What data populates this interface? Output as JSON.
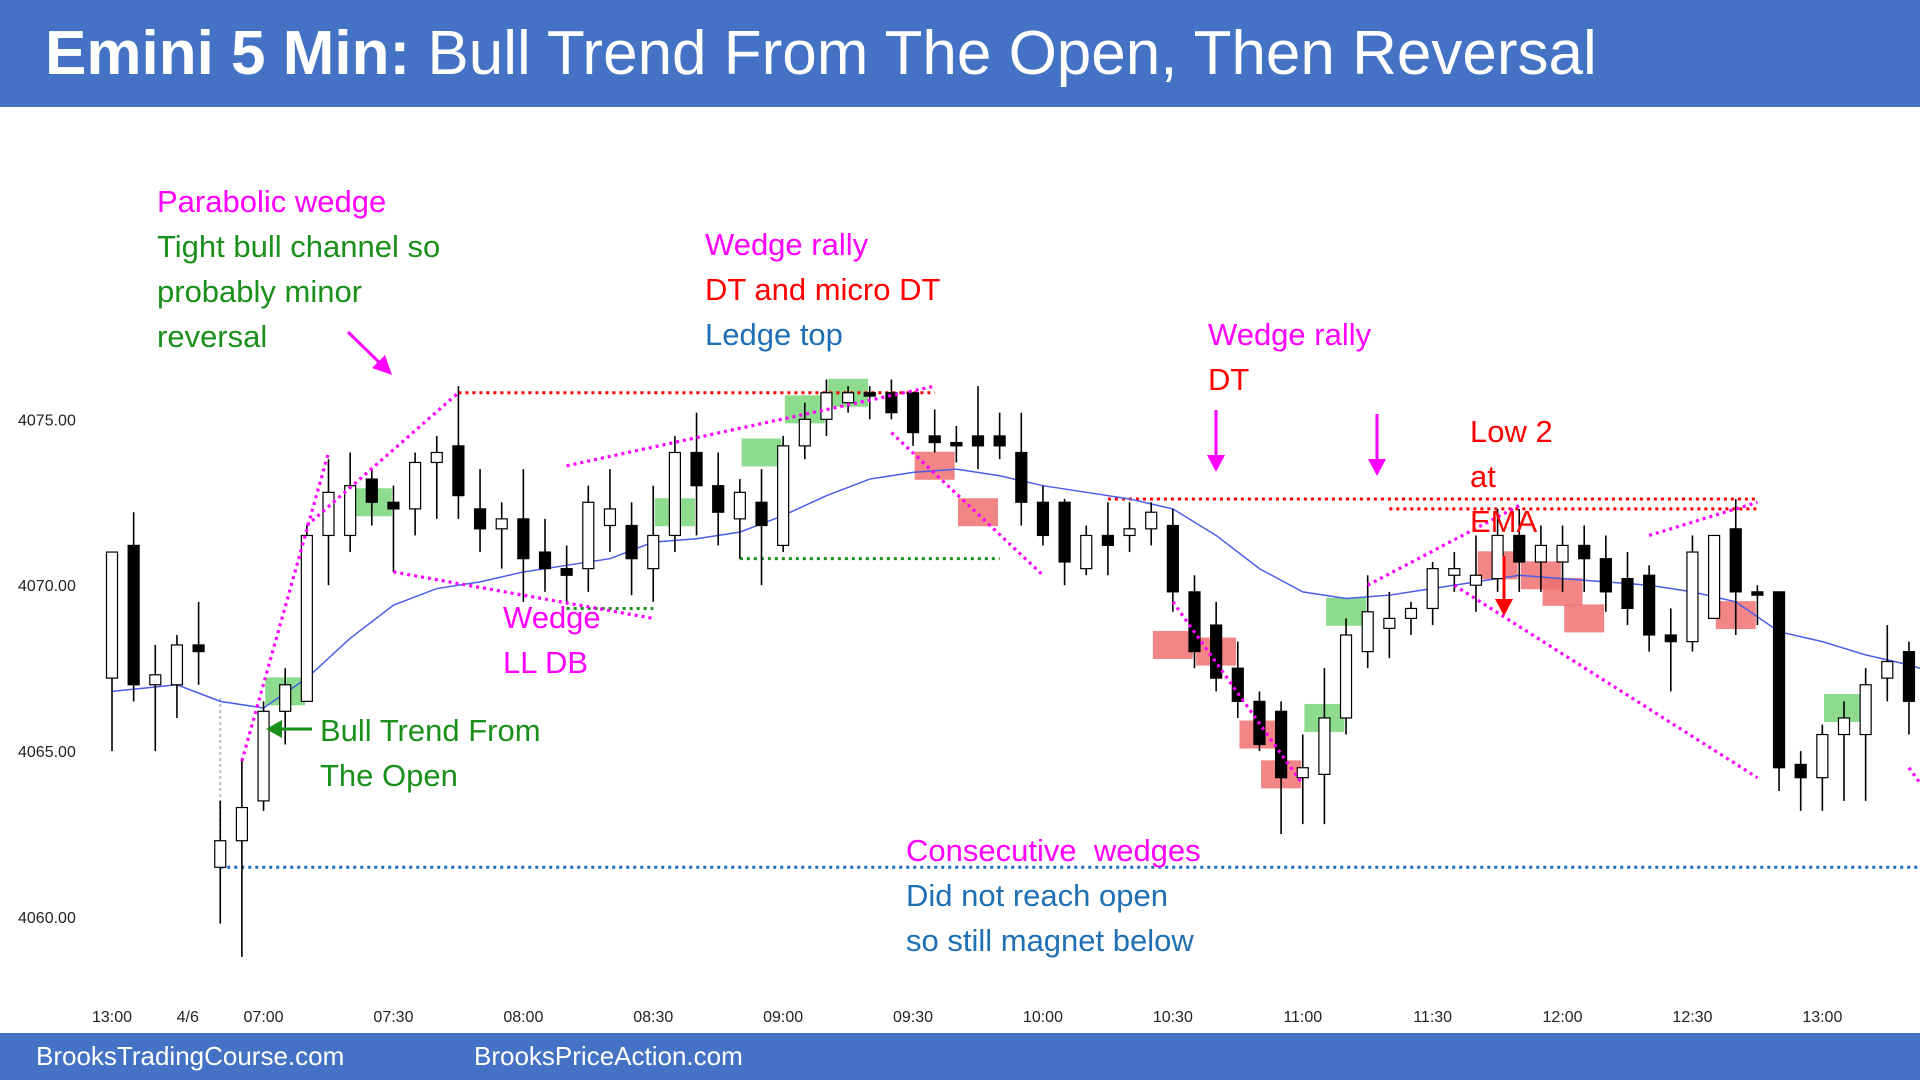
{
  "title": {
    "bold": "Emini 5 Min:",
    "rest": "Bull Trend From The Open, Then Reversal"
  },
  "footer": {
    "left": "BrooksTradingCourse.com",
    "right": "BrooksPriceAction.com"
  },
  "colors": {
    "header": "#4472c4",
    "bull_bar": "#ffffff",
    "bear_bar": "#000000",
    "ema": "#4a5ee8",
    "magenta": "#ff00ff",
    "red": "#ff0000",
    "green": "#1a8f1a",
    "blue": "#1f6fb4",
    "buy_box": "#79d679",
    "sell_box": "#f07070"
  },
  "chart_data": {
    "type": "candlestick",
    "title": "",
    "xlabel": "",
    "ylabel": "",
    "ylim": [
      4057.5,
      4079.5
    ],
    "y_ticks": [
      "4060.00",
      "4065.00",
      "4070.00",
      "4075.00"
    ],
    "y_tick_values": [
      4060,
      4065,
      4070,
      4075
    ],
    "x_ticks": [
      "13:00",
      "4/6",
      "07:00",
      "07:30",
      "08:00",
      "08:30",
      "09:00",
      "09:30",
      "10:00",
      "10:30",
      "11:00",
      "11:30",
      "12:00",
      "12:30",
      "13:00"
    ],
    "x_tick_bars": [
      0,
      3.5,
      7,
      13,
      19,
      25,
      31,
      37,
      43,
      49,
      55,
      61,
      67,
      73,
      79
    ],
    "bars": [
      {
        "o": 4067.2,
        "h": 4071.0,
        "l": 4065.0,
        "c": 4071.0
      },
      {
        "o": 4071.2,
        "h": 4072.2,
        "l": 4066.5,
        "c": 4067.0
      },
      {
        "o": 4067.0,
        "h": 4068.2,
        "l": 4065.0,
        "c": 4067.3
      },
      {
        "o": 4067.0,
        "h": 4068.5,
        "l": 4066.0,
        "c": 4068.2
      },
      {
        "o": 4068.2,
        "h": 4069.5,
        "l": 4067.0,
        "c": 4068.0
      },
      {
        "o": 4061.5,
        "h": 4063.5,
        "l": 4059.8,
        "c": 4062.3
      },
      {
        "o": 4062.3,
        "h": 4064.8,
        "l": 4058.8,
        "c": 4063.3
      },
      {
        "o": 4063.5,
        "h": 4066.5,
        "l": 4063.2,
        "c": 4066.2
      },
      {
        "o": 4066.2,
        "h": 4067.5,
        "l": 4065.2,
        "c": 4067.0
      },
      {
        "o": 4066.5,
        "h": 4071.8,
        "l": 4066.5,
        "c": 4071.5
      },
      {
        "o": 4071.5,
        "h": 4073.8,
        "l": 4070.0,
        "c": 4072.8
      },
      {
        "o": 4071.5,
        "h": 4074.0,
        "l": 4071.0,
        "c": 4073.0
      },
      {
        "o": 4073.2,
        "h": 4073.5,
        "l": 4071.8,
        "c": 4072.5
      },
      {
        "o": 4072.5,
        "h": 4073.0,
        "l": 4070.4,
        "c": 4072.3
      },
      {
        "o": 4072.3,
        "h": 4074.0,
        "l": 4071.5,
        "c": 4073.7
      },
      {
        "o": 4073.7,
        "h": 4074.5,
        "l": 4072.0,
        "c": 4074.0
      },
      {
        "o": 4074.2,
        "h": 4076.0,
        "l": 4072.0,
        "c": 4072.7
      },
      {
        "o": 4072.3,
        "h": 4073.5,
        "l": 4071.0,
        "c": 4071.7
      },
      {
        "o": 4071.7,
        "h": 4072.5,
        "l": 4070.5,
        "c": 4072.0
      },
      {
        "o": 4072.0,
        "h": 4073.5,
        "l": 4069.5,
        "c": 4070.8
      },
      {
        "o": 4071.0,
        "h": 4072.0,
        "l": 4069.8,
        "c": 4070.5
      },
      {
        "o": 4070.5,
        "h": 4071.2,
        "l": 4069.5,
        "c": 4070.3
      },
      {
        "o": 4070.5,
        "h": 4073.0,
        "l": 4069.8,
        "c": 4072.5
      },
      {
        "o": 4071.8,
        "h": 4073.5,
        "l": 4071.0,
        "c": 4072.3
      },
      {
        "o": 4071.8,
        "h": 4072.5,
        "l": 4069.7,
        "c": 4070.8
      },
      {
        "o": 4070.5,
        "h": 4073.0,
        "l": 4069.5,
        "c": 4071.5
      },
      {
        "o": 4071.5,
        "h": 4074.5,
        "l": 4071.0,
        "c": 4074.0
      },
      {
        "o": 4074.0,
        "h": 4075.2,
        "l": 4071.5,
        "c": 4073.0
      },
      {
        "o": 4073.0,
        "h": 4074.0,
        "l": 4071.2,
        "c": 4072.2
      },
      {
        "o": 4072.0,
        "h": 4073.2,
        "l": 4070.8,
        "c": 4072.8
      },
      {
        "o": 4072.5,
        "h": 4073.5,
        "l": 4070.0,
        "c": 4071.8
      },
      {
        "o": 4071.2,
        "h": 4074.5,
        "l": 4071.0,
        "c": 4074.2
      },
      {
        "o": 4074.2,
        "h": 4075.5,
        "l": 4073.8,
        "c": 4075.0
      },
      {
        "o": 4075.0,
        "h": 4076.2,
        "l": 4074.5,
        "c": 4075.8
      },
      {
        "o": 4075.5,
        "h": 4076.0,
        "l": 4075.2,
        "c": 4075.8
      },
      {
        "o": 4075.8,
        "h": 4076.0,
        "l": 4075.0,
        "c": 4075.7
      },
      {
        "o": 4075.8,
        "h": 4076.2,
        "l": 4075.0,
        "c": 4075.2
      },
      {
        "o": 4075.8,
        "h": 4075.8,
        "l": 4074.2,
        "c": 4074.6
      },
      {
        "o": 4074.5,
        "h": 4075.3,
        "l": 4074.0,
        "c": 4074.3
      },
      {
        "o": 4074.3,
        "h": 4074.8,
        "l": 4073.7,
        "c": 4074.2
      },
      {
        "o": 4074.5,
        "h": 4076.0,
        "l": 4073.5,
        "c": 4074.2
      },
      {
        "o": 4074.5,
        "h": 4075.2,
        "l": 4073.8,
        "c": 4074.2
      },
      {
        "o": 4074.0,
        "h": 4075.2,
        "l": 4071.8,
        "c": 4072.5
      },
      {
        "o": 4072.5,
        "h": 4073.0,
        "l": 4071.2,
        "c": 4071.5
      },
      {
        "o": 4072.5,
        "h": 4072.6,
        "l": 4070.0,
        "c": 4070.7
      },
      {
        "o": 4070.5,
        "h": 4071.8,
        "l": 4070.3,
        "c": 4071.5
      },
      {
        "o": 4071.5,
        "h": 4072.5,
        "l": 4070.3,
        "c": 4071.2
      },
      {
        "o": 4071.5,
        "h": 4072.5,
        "l": 4071.0,
        "c": 4071.7
      },
      {
        "o": 4071.7,
        "h": 4072.5,
        "l": 4071.2,
        "c": 4072.2
      },
      {
        "o": 4071.8,
        "h": 4072.3,
        "l": 4069.2,
        "c": 4069.8
      },
      {
        "o": 4069.8,
        "h": 4070.3,
        "l": 4067.5,
        "c": 4068.0
      },
      {
        "o": 4068.8,
        "h": 4069.5,
        "l": 4066.8,
        "c": 4067.2
      },
      {
        "o": 4067.5,
        "h": 4068.3,
        "l": 4066.0,
        "c": 4066.5
      },
      {
        "o": 4066.5,
        "h": 4066.8,
        "l": 4065.0,
        "c": 4065.2
      },
      {
        "o": 4066.2,
        "h": 4066.5,
        "l": 4062.5,
        "c": 4064.2
      },
      {
        "o": 4064.2,
        "h": 4065.5,
        "l": 4062.8,
        "c": 4064.5
      },
      {
        "o": 4064.3,
        "h": 4067.5,
        "l": 4062.8,
        "c": 4066.0
      },
      {
        "o": 4066.0,
        "h": 4069.0,
        "l": 4065.5,
        "c": 4068.5
      },
      {
        "o": 4068.0,
        "h": 4070.3,
        "l": 4067.5,
        "c": 4069.2
      },
      {
        "o": 4068.7,
        "h": 4069.8,
        "l": 4067.8,
        "c": 4069.0
      },
      {
        "o": 4069.0,
        "h": 4069.5,
        "l": 4068.5,
        "c": 4069.3
      },
      {
        "o": 4069.3,
        "h": 4070.7,
        "l": 4068.8,
        "c": 4070.5
      },
      {
        "o": 4070.3,
        "h": 4071.0,
        "l": 4069.8,
        "c": 4070.5
      },
      {
        "o": 4070.0,
        "h": 4071.5,
        "l": 4069.2,
        "c": 4070.3
      },
      {
        "o": 4070.2,
        "h": 4072.3,
        "l": 4069.8,
        "c": 4071.5
      },
      {
        "o": 4071.5,
        "h": 4072.3,
        "l": 4069.8,
        "c": 4070.7
      },
      {
        "o": 4070.7,
        "h": 4071.8,
        "l": 4069.8,
        "c": 4071.2
      },
      {
        "o": 4070.7,
        "h": 4071.8,
        "l": 4069.8,
        "c": 4071.2
      },
      {
        "o": 4071.2,
        "h": 4071.8,
        "l": 4069.8,
        "c": 4070.8
      },
      {
        "o": 4070.8,
        "h": 4071.5,
        "l": 4069.2,
        "c": 4069.8
      },
      {
        "o": 4070.2,
        "h": 4071.0,
        "l": 4068.8,
        "c": 4069.3
      },
      {
        "o": 4070.3,
        "h": 4070.6,
        "l": 4068.0,
        "c": 4068.5
      },
      {
        "o": 4068.5,
        "h": 4069.3,
        "l": 4066.8,
        "c": 4068.3
      },
      {
        "o": 4068.3,
        "h": 4071.5,
        "l": 4068.0,
        "c": 4071.0
      },
      {
        "o": 4069.0,
        "h": 4071.5,
        "l": 4069.0,
        "c": 4071.5
      },
      {
        "o": 4071.7,
        "h": 4072.6,
        "l": 4068.5,
        "c": 4069.8
      },
      {
        "o": 4069.8,
        "h": 4070.0,
        "l": 4068.8,
        "c": 4069.7
      },
      {
        "o": 4069.8,
        "h": 4069.8,
        "l": 4063.8,
        "c": 4064.5
      },
      {
        "o": 4064.6,
        "h": 4065.0,
        "l": 4063.2,
        "c": 4064.2
      },
      {
        "o": 4064.2,
        "h": 4065.8,
        "l": 4063.2,
        "c": 4065.5
      },
      {
        "o": 4065.5,
        "h": 4066.5,
        "l": 4063.5,
        "c": 4066.0
      },
      {
        "o": 4065.5,
        "h": 4067.5,
        "l": 4063.5,
        "c": 4067.0
      },
      {
        "o": 4067.2,
        "h": 4068.8,
        "l": 4066.5,
        "c": 4067.7
      },
      {
        "o": 4068.0,
        "h": 4068.3,
        "l": 4065.5,
        "c": 4066.5
      },
      {
        "o": 4066.5,
        "h": 4066.5,
        "l": 4064.0,
        "c": 4064.2
      },
      {
        "o": 4065.2,
        "h": 4065.5,
        "l": 4062.5,
        "c": 4063.3
      },
      {
        "o": 4062.8,
        "h": 4063.2,
        "l": 4061.0,
        "c": 4062.3
      },
      {
        "o": 4062.5,
        "h": 4062.8,
        "l": 4061.5,
        "c": 4062.2
      },
      {
        "o": 4062.5,
        "h": 4062.6,
        "l": 4058.5,
        "c": 4059.0
      },
      {
        "o": 4059.2,
        "h": 4065.5,
        "l": 4058.8,
        "c": 4064.5
      },
      {
        "o": 4064.5,
        "h": 4065.8,
        "l": 4063.3,
        "c": 4064.8
      },
      {
        "o": 4064.8,
        "h": 4065.3,
        "l": 4063.5,
        "c": 4064.6
      },
      {
        "o": 4064.3,
        "h": 4064.8,
        "l": 4063.5,
        "c": 4064.2
      }
    ],
    "ema": [
      [
        0,
        4066.8
      ],
      [
        3,
        4067.0
      ],
      [
        5,
        4066.5
      ],
      [
        7,
        4066.3
      ],
      [
        9,
        4067.2
      ],
      [
        11,
        4068.4
      ],
      [
        13,
        4069.4
      ],
      [
        15,
        4069.9
      ],
      [
        17,
        4070.1
      ],
      [
        19,
        4070.4
      ],
      [
        21,
        4070.6
      ],
      [
        23,
        4070.8
      ],
      [
        25,
        4071.3
      ],
      [
        27,
        4071.4
      ],
      [
        29,
        4071.6
      ],
      [
        31,
        4072.1
      ],
      [
        33,
        4072.7
      ],
      [
        35,
        4073.2
      ],
      [
        37,
        4073.4
      ],
      [
        39,
        4073.5
      ],
      [
        41,
        4073.3
      ],
      [
        43,
        4073.0
      ],
      [
        45,
        4072.8
      ],
      [
        47,
        4072.6
      ],
      [
        49,
        4072.3
      ],
      [
        51,
        4071.5
      ],
      [
        53,
        4070.5
      ],
      [
        55,
        4069.8
      ],
      [
        57,
        4069.6
      ],
      [
        59,
        4069.7
      ],
      [
        61,
        4069.9
      ],
      [
        63,
        4070.1
      ],
      [
        65,
        4070.3
      ],
      [
        67,
        4070.2
      ],
      [
        69,
        4070.1
      ],
      [
        71,
        4070.0
      ],
      [
        73,
        4069.8
      ],
      [
        75,
        4069.5
      ],
      [
        77,
        4068.6
      ],
      [
        79,
        4068.3
      ],
      [
        81,
        4067.9
      ],
      [
        83,
        4067.6
      ],
      [
        85,
        4067.2
      ],
      [
        87,
        4066.5
      ],
      [
        89,
        4065.8
      ],
      [
        91,
        4065.6
      ],
      [
        93,
        4065.4
      ]
    ],
    "annotations": [
      {
        "lines": [
          "Parabolic wedge"
        ],
        "color": "magenta"
      },
      {
        "lines": [
          "Tight bull channel so",
          "probably minor",
          "reversal"
        ],
        "color": "green"
      },
      {
        "lines": [
          "Wedge rally"
        ],
        "color": "magenta"
      },
      {
        "lines": [
          "DT and micro DT"
        ],
        "color": "red"
      },
      {
        "lines": [
          "Ledge top"
        ],
        "color": "blue"
      },
      {
        "lines": [
          "Wedge rally"
        ],
        "color": "magenta"
      },
      {
        "lines": [
          "DT"
        ],
        "color": "red"
      },
      {
        "lines": [
          "Low 2",
          "at",
          "EMA"
        ],
        "color": "red"
      },
      {
        "lines": [
          "Wedge",
          "LL DB"
        ],
        "color": "magenta"
      },
      {
        "lines": [
          "Bull Trend From",
          "The Open"
        ],
        "color": "green"
      },
      {
        "lines": [
          "Consecutive  wedges"
        ],
        "color": "magenta"
      },
      {
        "lines": [
          "Did not reach open",
          "so still magnet below"
        ],
        "color": "blue"
      }
    ],
    "levels": [
      {
        "name": "open-level-line",
        "value": 4061.5,
        "from_bar": 5,
        "to_bar": 94,
        "color": "blue"
      },
      {
        "name": "parabolic-wedge-high-line",
        "value": 4075.8,
        "from_bar": 16,
        "to_bar": 38,
        "color": "red"
      },
      {
        "name": "ledge-low-line",
        "value": 4070.8,
        "from_bar": 29,
        "to_bar": 41,
        "color": "green"
      },
      {
        "name": "dt-upper-line",
        "value": 4072.6,
        "from_bar": 46,
        "to_bar": 76,
        "color": "red"
      },
      {
        "name": "dt-lower-line",
        "value": 4072.3,
        "from_bar": 59,
        "to_bar": 76,
        "color": "red"
      },
      {
        "name": "wedge-ll-db-line",
        "value": 4069.3,
        "from_bar": 21,
        "to_bar": 25,
        "color": "green"
      }
    ],
    "wedge_lines": [
      {
        "name": "parabolic-wedge-lower",
        "points": [
          [
            6,
            4064.7
          ],
          [
            10,
            4074.0
          ]
        ]
      },
      {
        "name": "parabolic-wedge-upper",
        "points": [
          [
            9,
            4071.8
          ],
          [
            16,
            4075.8
          ]
        ]
      },
      {
        "name": "wedge-lower-line",
        "points": [
          [
            13,
            4070.4
          ],
          [
            25,
            4069.0
          ]
        ]
      },
      {
        "name": "wedge-rally-upper",
        "points": [
          [
            21,
            4073.6
          ],
          [
            38,
            4076.0
          ]
        ]
      },
      {
        "name": "reversal-down-line-1",
        "points": [
          [
            36,
            4074.6
          ],
          [
            43,
            4070.3
          ]
        ]
      },
      {
        "name": "reversal-down-line-2",
        "points": [
          [
            49,
            4069.5
          ],
          [
            55,
            4064.0
          ]
        ]
      },
      {
        "name": "wedge-rally-2-upper",
        "points": [
          [
            58,
            4070.0
          ],
          [
            65,
            4072.4
          ]
        ]
      },
      {
        "name": "reversal-down-line-3",
        "points": [
          [
            62,
            4070.0
          ],
          [
            76,
            4064.2
          ]
        ]
      },
      {
        "name": "wedge-rally-2-upper-b",
        "points": [
          [
            71,
            4071.5
          ],
          [
            76,
            4072.5
          ]
        ]
      },
      {
        "name": "reversal-down-line-4",
        "points": [
          [
            83,
            4064.5
          ],
          [
            88,
            4060.0
          ]
        ]
      }
    ],
    "signal_boxes": [
      {
        "bar": 12,
        "value": 4072.5,
        "kind": "buy"
      },
      {
        "bar": 8,
        "value": 4066.8,
        "kind": "buy"
      },
      {
        "bar": 26,
        "value": 4072.2,
        "kind": "buy"
      },
      {
        "bar": 30,
        "value": 4074.0,
        "kind": "buy"
      },
      {
        "bar": 32,
        "value": 4075.3,
        "kind": "buy"
      },
      {
        "bar": 34,
        "value": 4075.8,
        "kind": "buy"
      },
      {
        "bar": 38,
        "value": 4073.6,
        "kind": "sell"
      },
      {
        "bar": 40,
        "value": 4072.2,
        "kind": "sell"
      },
      {
        "bar": 49,
        "value": 4068.2,
        "kind": "sell"
      },
      {
        "bar": 51,
        "value": 4068.0,
        "kind": "sell"
      },
      {
        "bar": 53,
        "value": 4065.5,
        "kind": "sell"
      },
      {
        "bar": 54,
        "value": 4064.3,
        "kind": "sell"
      },
      {
        "bar": 56,
        "value": 4066.0,
        "kind": "buy"
      },
      {
        "bar": 57,
        "value": 4069.2,
        "kind": "buy"
      },
      {
        "bar": 64,
        "value": 4070.6,
        "kind": "sell"
      },
      {
        "bar": 66,
        "value": 4070.3,
        "kind": "sell"
      },
      {
        "bar": 67,
        "value": 4069.8,
        "kind": "sell"
      },
      {
        "bar": 68,
        "value": 4069.0,
        "kind": "sell"
      },
      {
        "bar": 75,
        "value": 4069.1,
        "kind": "sell"
      },
      {
        "bar": 80,
        "value": 4066.3,
        "kind": "buy"
      },
      {
        "bar": 85,
        "value": 4064.7,
        "kind": "sell"
      },
      {
        "bar": 87,
        "value": 4062.2,
        "kind": "sell"
      }
    ]
  }
}
